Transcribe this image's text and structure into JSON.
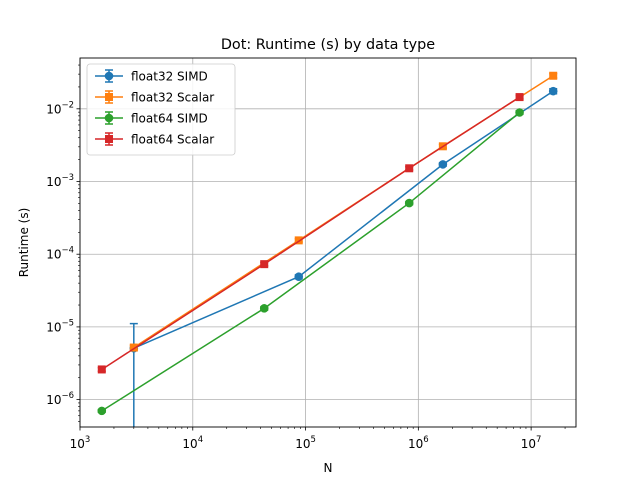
{
  "chart_data": {
    "type": "line",
    "title": "Dot: Runtime (s) by data type",
    "xlabel": "N",
    "ylabel": "Runtime (s)",
    "xscale": "log",
    "yscale": "log",
    "xlim": [
      1000,
      25000000
    ],
    "ylim": [
      4.2e-07,
      0.05
    ],
    "grid": true,
    "legend_position": "top-left",
    "x_ticks": [
      {
        "value": 1000,
        "base": "10",
        "exp": "3"
      },
      {
        "value": 10000,
        "base": "10",
        "exp": "4"
      },
      {
        "value": 100000,
        "base": "10",
        "exp": "5"
      },
      {
        "value": 1000000,
        "base": "10",
        "exp": "6"
      },
      {
        "value": 10000000,
        "base": "10",
        "exp": "7"
      }
    ],
    "y_ticks": [
      {
        "value": 1e-06,
        "base": "10",
        "exp": "−6"
      },
      {
        "value": 1e-05,
        "base": "10",
        "exp": "−5"
      },
      {
        "value": 0.0001,
        "base": "10",
        "exp": "−4"
      },
      {
        "value": 0.001,
        "base": "10",
        "exp": "−3"
      },
      {
        "value": 0.01,
        "base": "10",
        "exp": "−2"
      }
    ],
    "series": [
      {
        "name": "float32 SIMD",
        "color": "#1f77b4",
        "marker": "circle",
        "x": [
          3000,
          87000,
          1650000,
          15700000
        ],
        "y": [
          5.1e-06,
          4.9e-05,
          0.00172,
          0.0175
        ],
        "err": [
          6e-06,
          3e-06,
          9e-05,
          0.0014
        ]
      },
      {
        "name": "float32 Scalar",
        "color": "#ff7f0e",
        "marker": "square",
        "x": [
          3000,
          87000,
          1650000,
          15700000
        ],
        "y": [
          5.2e-06,
          0.000155,
          0.00305,
          0.0285
        ],
        "err": [
          4e-07,
          8e-06,
          0.00018,
          0.002
        ]
      },
      {
        "name": "float64 SIMD",
        "color": "#2ca02c",
        "marker": "circle",
        "x": [
          1560,
          43000,
          830000,
          7900000
        ],
        "y": [
          7e-07,
          1.8e-05,
          0.000505,
          0.0089
        ],
        "err": [
          3e-08,
          1e-06,
          2.5e-05,
          0.0005
        ]
      },
      {
        "name": "float64 Scalar",
        "color": "#d62728",
        "marker": "square",
        "x": [
          1560,
          43000,
          830000,
          7900000
        ],
        "y": [
          2.6e-06,
          7.3e-05,
          0.00152,
          0.0145
        ],
        "err": [
          1.5e-07,
          4e-06,
          8e-05,
          0.0008
        ]
      }
    ]
  }
}
